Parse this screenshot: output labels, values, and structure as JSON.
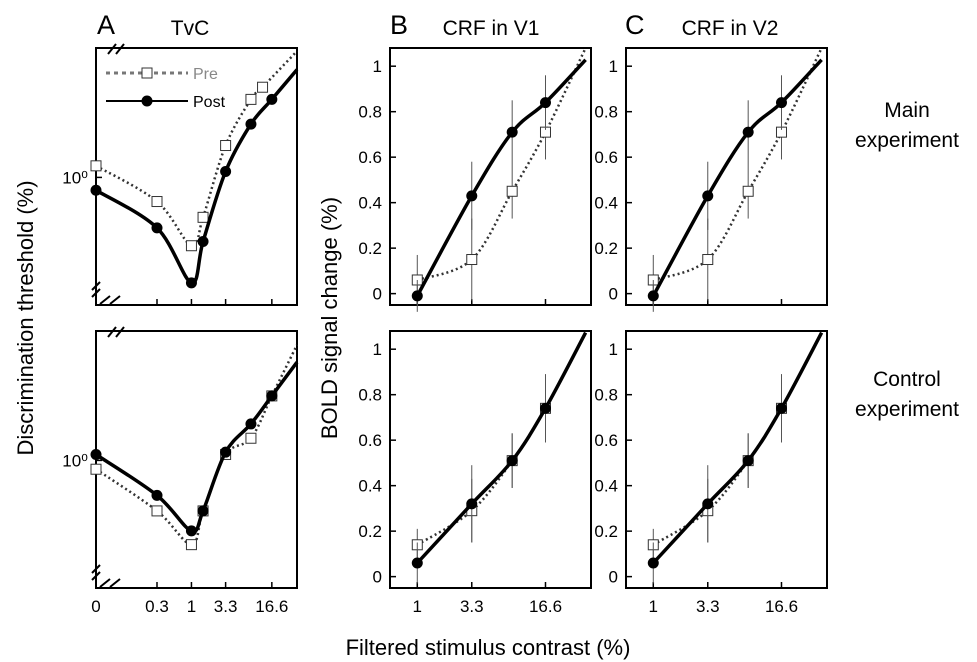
{
  "figure": {
    "xlabel": "Filtered stimulus contrast (%)",
    "row_labels": [
      {
        "line1": "Main",
        "line2": "experiment"
      },
      {
        "line1": "Control",
        "line2": "experiment"
      }
    ],
    "colors": {
      "pre": "#333333",
      "post": "#000000",
      "pre_legend_text": "#888888"
    }
  },
  "chart_data": [
    {
      "id": "A-main",
      "panel": "A",
      "title": "TvC",
      "type": "line",
      "x_scale": "log",
      "y_scale": "log",
      "ylabel": "Discrimination threshold (%)",
      "xticks": [
        "0",
        "0.3",
        "1",
        "3.3",
        "16.6"
      ],
      "yticks": [
        "10⁰"
      ],
      "legend": {
        "position": "top-left",
        "entries": [
          "Pre",
          "Post"
        ]
      },
      "series": [
        {
          "name": "Pre",
          "marker": "open-square",
          "line": "dotted",
          "points": [
            {
              "x": 0,
              "y": 1.1
            },
            {
              "x": 0.3,
              "y": 0.82
            },
            {
              "x": 1,
              "y": 0.57
            },
            {
              "x": 1.5,
              "y": 0.72
            },
            {
              "x": 3.3,
              "y": 1.3
            },
            {
              "x": 8,
              "y": 1.9
            },
            {
              "x": 12,
              "y": 2.1
            }
          ]
        },
        {
          "name": "Post",
          "marker": "filled-circle",
          "line": "solid",
          "points": [
            {
              "x": 0,
              "y": 0.9
            },
            {
              "x": 0.3,
              "y": 0.66
            },
            {
              "x": 1,
              "y": 0.42
            },
            {
              "x": 1.5,
              "y": 0.59
            },
            {
              "x": 3.3,
              "y": 1.05
            },
            {
              "x": 8,
              "y": 1.55
            },
            {
              "x": 16.6,
              "y": 1.9
            }
          ]
        }
      ]
    },
    {
      "id": "A-control",
      "panel": "A",
      "title": "",
      "type": "line",
      "x_scale": "log",
      "y_scale": "log",
      "ylabel": "Discrimination threshold (%)",
      "xticks": [
        "0",
        "0.3",
        "1",
        "3.3",
        "16.6"
      ],
      "yticks": [
        "10⁰"
      ],
      "series": [
        {
          "name": "Pre",
          "marker": "open-square",
          "line": "dotted",
          "points": [
            {
              "x": 0,
              "y": 0.93
            },
            {
              "x": 0.3,
              "y": 0.66
            },
            {
              "x": 1,
              "y": 0.5
            },
            {
              "x": 1.5,
              "y": 0.66
            },
            {
              "x": 3.3,
              "y": 1.05
            },
            {
              "x": 8,
              "y": 1.2
            },
            {
              "x": 16.6,
              "y": 1.7
            }
          ]
        },
        {
          "name": "Post",
          "marker": "filled-circle",
          "line": "solid",
          "points": [
            {
              "x": 0,
              "y": 1.05
            },
            {
              "x": 0.3,
              "y": 0.75
            },
            {
              "x": 1,
              "y": 0.56
            },
            {
              "x": 1.5,
              "y": 0.66
            },
            {
              "x": 3.3,
              "y": 1.07
            },
            {
              "x": 8,
              "y": 1.35
            },
            {
              "x": 16.6,
              "y": 1.7
            }
          ]
        }
      ]
    },
    {
      "id": "B-main",
      "panel": "B",
      "title": "CRF in V1",
      "type": "line",
      "x_scale": "log",
      "ylim": [
        -0.05,
        1.08
      ],
      "ylabel": "BOLD signal change (%)",
      "xticks": [
        "1",
        "3.3",
        "16.6"
      ],
      "yticks": [
        "0",
        "0.2",
        "0.4",
        "0.6",
        "0.8",
        "1"
      ],
      "series": [
        {
          "name": "Pre",
          "marker": "open-square",
          "line": "dotted",
          "points": [
            {
              "x": 1,
              "y": 0.06,
              "err": 0.11
            },
            {
              "x": 3.3,
              "y": 0.15,
              "err": 0.18
            },
            {
              "x": 8,
              "y": 0.45,
              "err": 0.12
            },
            {
              "x": 16.6,
              "y": 0.71,
              "err": 0.12
            }
          ]
        },
        {
          "name": "Post",
          "marker": "filled-circle",
          "line": "solid",
          "points": [
            {
              "x": 1,
              "y": -0.01,
              "err": 0.07
            },
            {
              "x": 3.3,
              "y": 0.43,
              "err": 0.15
            },
            {
              "x": 8,
              "y": 0.71,
              "err": 0.14
            },
            {
              "x": 16.6,
              "y": 0.84,
              "err": 0.12
            }
          ]
        }
      ]
    },
    {
      "id": "C-main",
      "panel": "C",
      "title": "CRF in V2",
      "type": "line",
      "x_scale": "log",
      "ylim": [
        -0.05,
        1.08
      ],
      "ylabel": "BOLD signal change (%)",
      "xticks": [
        "1",
        "3.3",
        "16.6"
      ],
      "yticks": [
        "0",
        "0.2",
        "0.4",
        "0.6",
        "0.8",
        "1"
      ],
      "series": [
        {
          "name": "Pre",
          "marker": "open-square",
          "line": "dotted",
          "points": [
            {
              "x": 1,
              "y": 0.06,
              "err": 0.11
            },
            {
              "x": 3.3,
              "y": 0.15,
              "err": 0.18
            },
            {
              "x": 8,
              "y": 0.45,
              "err": 0.12
            },
            {
              "x": 16.6,
              "y": 0.71,
              "err": 0.12
            }
          ]
        },
        {
          "name": "Post",
          "marker": "filled-circle",
          "line": "solid",
          "points": [
            {
              "x": 1,
              "y": -0.01,
              "err": 0.07
            },
            {
              "x": 3.3,
              "y": 0.43,
              "err": 0.15
            },
            {
              "x": 8,
              "y": 0.71,
              "err": 0.14
            },
            {
              "x": 16.6,
              "y": 0.84,
              "err": 0.12
            }
          ]
        }
      ]
    },
    {
      "id": "B-control",
      "panel": "B",
      "title": "",
      "type": "line",
      "x_scale": "log",
      "ylim": [
        -0.05,
        1.08
      ],
      "ylabel": "BOLD signal change (%)",
      "xticks": [
        "1",
        "3.3",
        "16.6"
      ],
      "yticks": [
        "0",
        "0.2",
        "0.4",
        "0.6",
        "0.8",
        "1"
      ],
      "series": [
        {
          "name": "Pre",
          "marker": "open-square",
          "line": "dotted",
          "points": [
            {
              "x": 1,
              "y": 0.14,
              "err": 0.07
            },
            {
              "x": 3.3,
              "y": 0.29,
              "err": 0.14
            },
            {
              "x": 8,
              "y": 0.51,
              "err": 0.12
            },
            {
              "x": 16.6,
              "y": 0.74,
              "err": 0.15
            }
          ]
        },
        {
          "name": "Post",
          "marker": "filled-circle",
          "line": "solid",
          "points": [
            {
              "x": 1,
              "y": 0.06,
              "err": 0.09
            },
            {
              "x": 3.3,
              "y": 0.32,
              "err": 0.17
            },
            {
              "x": 8,
              "y": 0.51,
              "err": 0.12
            },
            {
              "x": 16.6,
              "y": 0.74,
              "err": 0.15
            }
          ]
        }
      ]
    },
    {
      "id": "C-control",
      "panel": "C",
      "title": "",
      "type": "line",
      "x_scale": "log",
      "ylim": [
        -0.05,
        1.08
      ],
      "ylabel": "BOLD signal change (%)",
      "xticks": [
        "1",
        "3.3",
        "16.6"
      ],
      "yticks": [
        "0",
        "0.2",
        "0.4",
        "0.6",
        "0.8",
        "1"
      ],
      "series": [
        {
          "name": "Pre",
          "marker": "open-square",
          "line": "dotted",
          "points": [
            {
              "x": 1,
              "y": 0.14,
              "err": 0.07
            },
            {
              "x": 3.3,
              "y": 0.29,
              "err": 0.14
            },
            {
              "x": 8,
              "y": 0.51,
              "err": 0.12
            },
            {
              "x": 16.6,
              "y": 0.74,
              "err": 0.15
            }
          ]
        },
        {
          "name": "Post",
          "marker": "filled-circle",
          "line": "solid",
          "points": [
            {
              "x": 1,
              "y": 0.06,
              "err": 0.09
            },
            {
              "x": 3.3,
              "y": 0.32,
              "err": 0.17
            },
            {
              "x": 8,
              "y": 0.51,
              "err": 0.12
            },
            {
              "x": 16.6,
              "y": 0.74,
              "err": 0.15
            }
          ]
        }
      ]
    }
  ]
}
